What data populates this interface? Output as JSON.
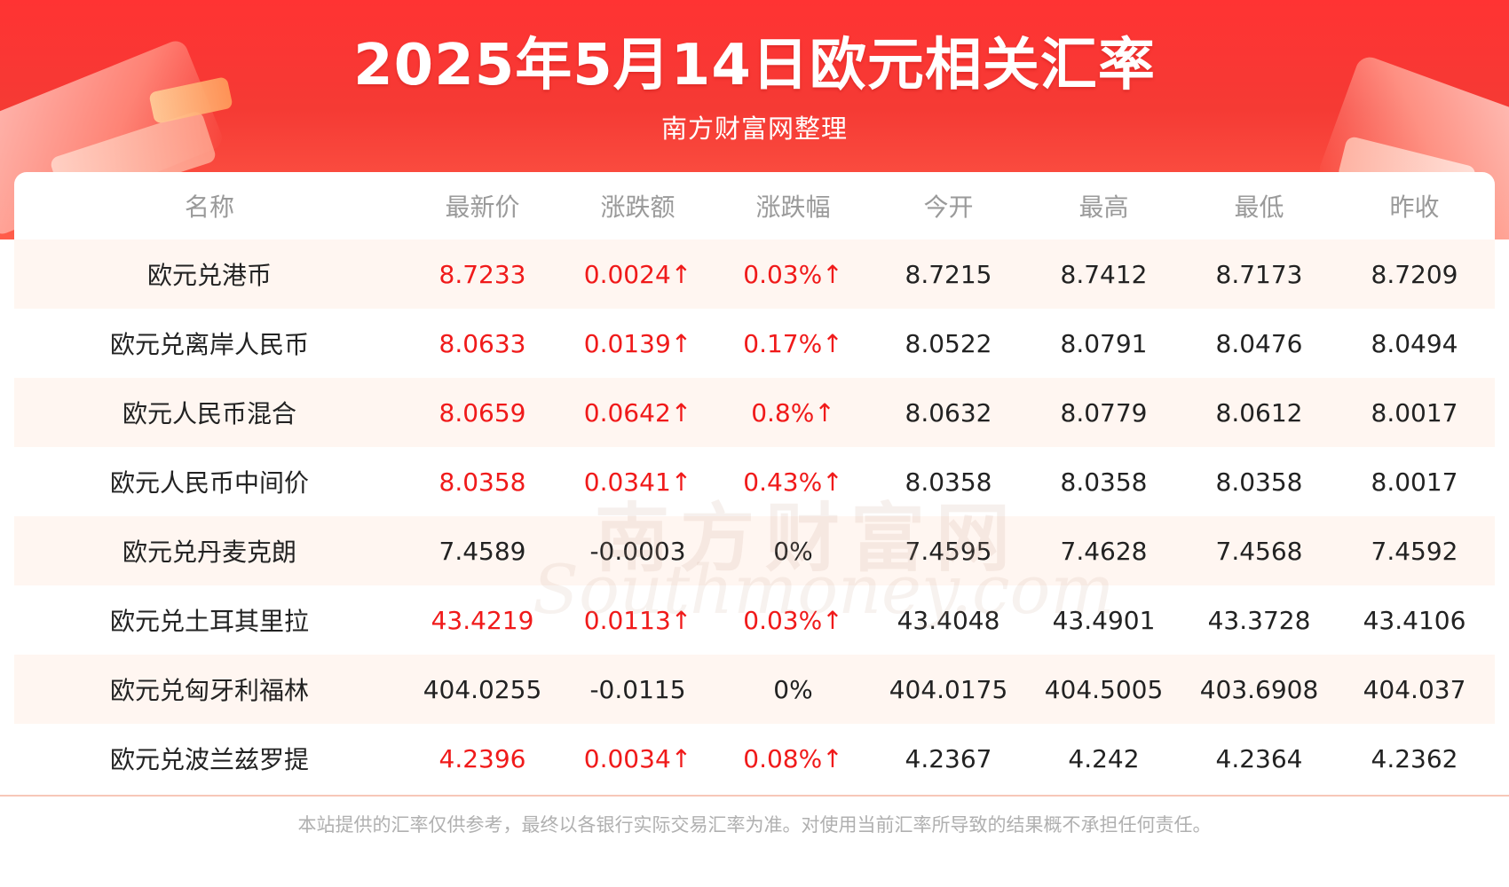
{
  "header": {
    "title": "2025年5月14日欧元相关汇率",
    "subtitle": "南方财富网整理"
  },
  "table": {
    "columns": [
      "名称",
      "最新价",
      "涨跌额",
      "涨跌幅",
      "今开",
      "最高",
      "最低",
      "昨收"
    ],
    "rows": [
      {
        "name": "欧元兑港币",
        "latest": "8.7233",
        "change": "0.0024↑",
        "pct": "0.03%↑",
        "open": "8.7215",
        "high": "8.7412",
        "low": "8.7173",
        "prev": "8.7209",
        "up": true
      },
      {
        "name": "欧元兑离岸人民币",
        "latest": "8.0633",
        "change": "0.0139↑",
        "pct": "0.17%↑",
        "open": "8.0522",
        "high": "8.0791",
        "low": "8.0476",
        "prev": "8.0494",
        "up": true
      },
      {
        "name": "欧元人民币混合",
        "latest": "8.0659",
        "change": "0.0642↑",
        "pct": "0.8%↑",
        "open": "8.0632",
        "high": "8.0779",
        "low": "8.0612",
        "prev": "8.0017",
        "up": true
      },
      {
        "name": "欧元人民币中间价",
        "latest": "8.0358",
        "change": "0.0341↑",
        "pct": "0.43%↑",
        "open": "8.0358",
        "high": "8.0358",
        "low": "8.0358",
        "prev": "8.0017",
        "up": true
      },
      {
        "name": "欧元兑丹麦克朗",
        "latest": "7.4589",
        "change": "-0.0003",
        "pct": "0%",
        "open": "7.4595",
        "high": "7.4628",
        "low": "7.4568",
        "prev": "7.4592",
        "up": false
      },
      {
        "name": "欧元兑土耳其里拉",
        "latest": "43.4219",
        "change": "0.0113↑",
        "pct": "0.03%↑",
        "open": "43.4048",
        "high": "43.4901",
        "low": "43.3728",
        "prev": "43.4106",
        "up": true
      },
      {
        "name": "欧元兑匈牙利福林",
        "latest": "404.0255",
        "change": "-0.0115",
        "pct": "0%",
        "open": "404.0175",
        "high": "404.5005",
        "low": "403.6908",
        "prev": "404.037",
        "up": false
      },
      {
        "name": "欧元兑波兰兹罗提",
        "latest": "4.2396",
        "change": "0.0034↑",
        "pct": "0.08%↑",
        "open": "4.2367",
        "high": "4.242",
        "low": "4.2364",
        "prev": "4.2362",
        "up": true
      }
    ]
  },
  "watermark": {
    "cn": "南方财富网",
    "en": "Southmoney.com"
  },
  "footer": {
    "disclaimer": "本站提供的汇率仅供参考，最终以各银行实际交易汇率为准。对使用当前汇率所导致的结果概不承担任何责任。"
  },
  "colors": {
    "banner": "#f53a34",
    "up": "#f01a1a",
    "row_alt": "#fff6f1",
    "header_text": "#9a9a9a"
  }
}
